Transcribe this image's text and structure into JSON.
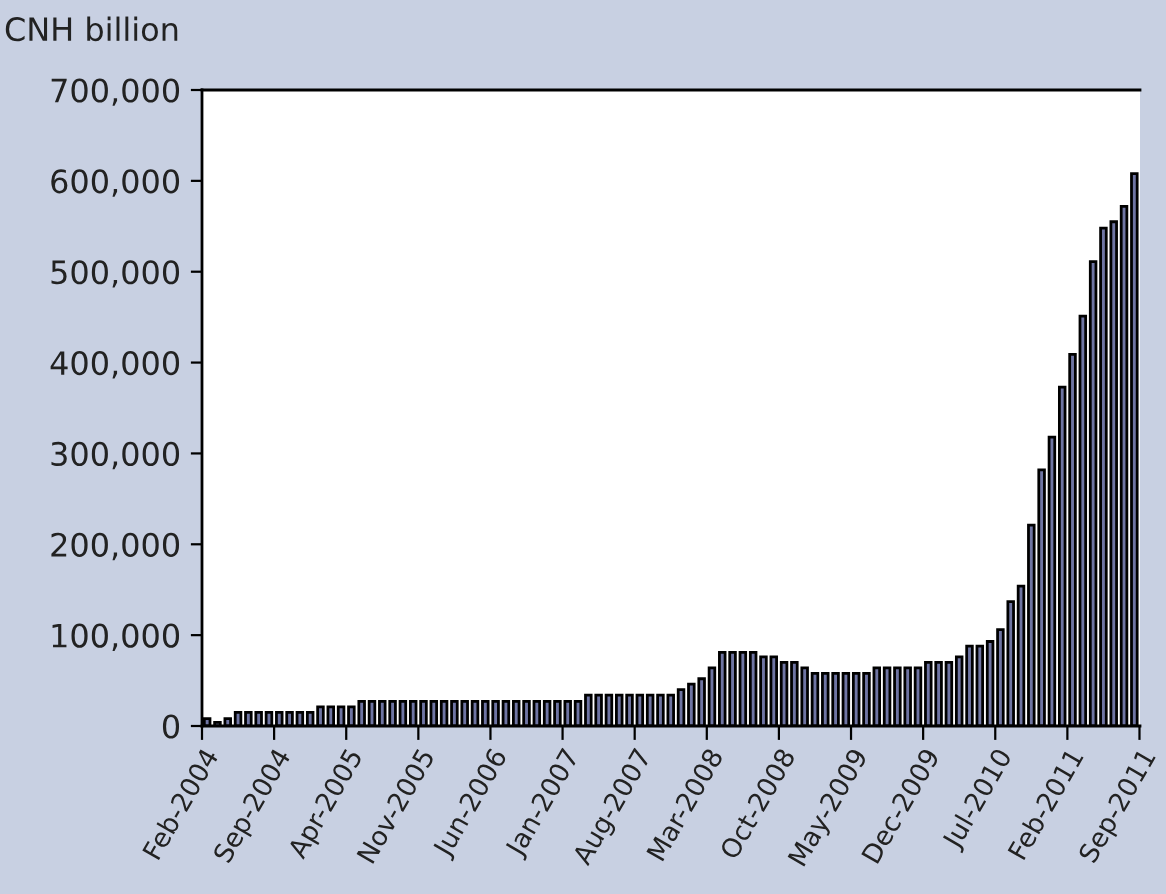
{
  "chart_data": {
    "type": "bar",
    "ylabel": "CNH billion",
    "categories": [
      "Feb-2004",
      null,
      null,
      null,
      null,
      null,
      null,
      "Sep-2004",
      null,
      null,
      null,
      null,
      null,
      null,
      "Apr-2005",
      null,
      null,
      null,
      null,
      null,
      null,
      "Nov-2005",
      null,
      null,
      null,
      null,
      null,
      null,
      "Jun-2006",
      null,
      null,
      null,
      null,
      null,
      null,
      "Jan-2007",
      null,
      null,
      null,
      null,
      null,
      null,
      "Aug-2007",
      null,
      null,
      null,
      null,
      null,
      null,
      "Mar-2008",
      null,
      null,
      null,
      null,
      null,
      null,
      "Oct-2008",
      null,
      null,
      null,
      null,
      null,
      null,
      "May-2009",
      null,
      null,
      null,
      null,
      null,
      null,
      "Dec-2009",
      null,
      null,
      null,
      null,
      null,
      null,
      "Jul-2010",
      null,
      null,
      null,
      null,
      null,
      null,
      "Feb-2011",
      null,
      null,
      null,
      null,
      null,
      null,
      "Sep-2011"
    ],
    "values": [
      8000,
      4000,
      8000,
      15000,
      15000,
      15000,
      15000,
      15000,
      15000,
      15000,
      15000,
      21000,
      21000,
      21000,
      21000,
      27000,
      27000,
      27000,
      27000,
      27000,
      27000,
      27000,
      27000,
      27000,
      27000,
      27000,
      27000,
      27000,
      27000,
      27000,
      27000,
      27000,
      27000,
      27000,
      27000,
      27000,
      27000,
      34000,
      34000,
      34000,
      34000,
      34000,
      34000,
      34000,
      34000,
      34000,
      40000,
      46000,
      52000,
      64000,
      81000,
      81000,
      81000,
      81000,
      76000,
      76000,
      70000,
      70000,
      64000,
      58000,
      58000,
      58000,
      58000,
      58000,
      58000,
      64000,
      64000,
      64000,
      64000,
      64000,
      70000,
      70000,
      70000,
      76000,
      88000,
      88000,
      93000,
      106000,
      137000,
      154000,
      221000,
      282000,
      318000,
      373000,
      409000,
      451000,
      511000,
      548000,
      555000,
      572000,
      608000,
      null
    ],
    "color": "#6f75a3",
    "ylim": [
      0,
      700000
    ],
    "yticks": [
      0,
      {
        "value": 100000,
        "label": "100,000"
      },
      {
        "value": 200000,
        "label": "200,000"
      },
      {
        "value": 300000,
        "label": "300,000"
      },
      {
        "value": 400000,
        "label": "400,000"
      },
      {
        "value": 500000,
        "label": "500,000"
      },
      {
        "value": 600000,
        "label": "600,000"
      },
      {
        "value": 700000,
        "label": "700,000"
      }
    ]
  }
}
